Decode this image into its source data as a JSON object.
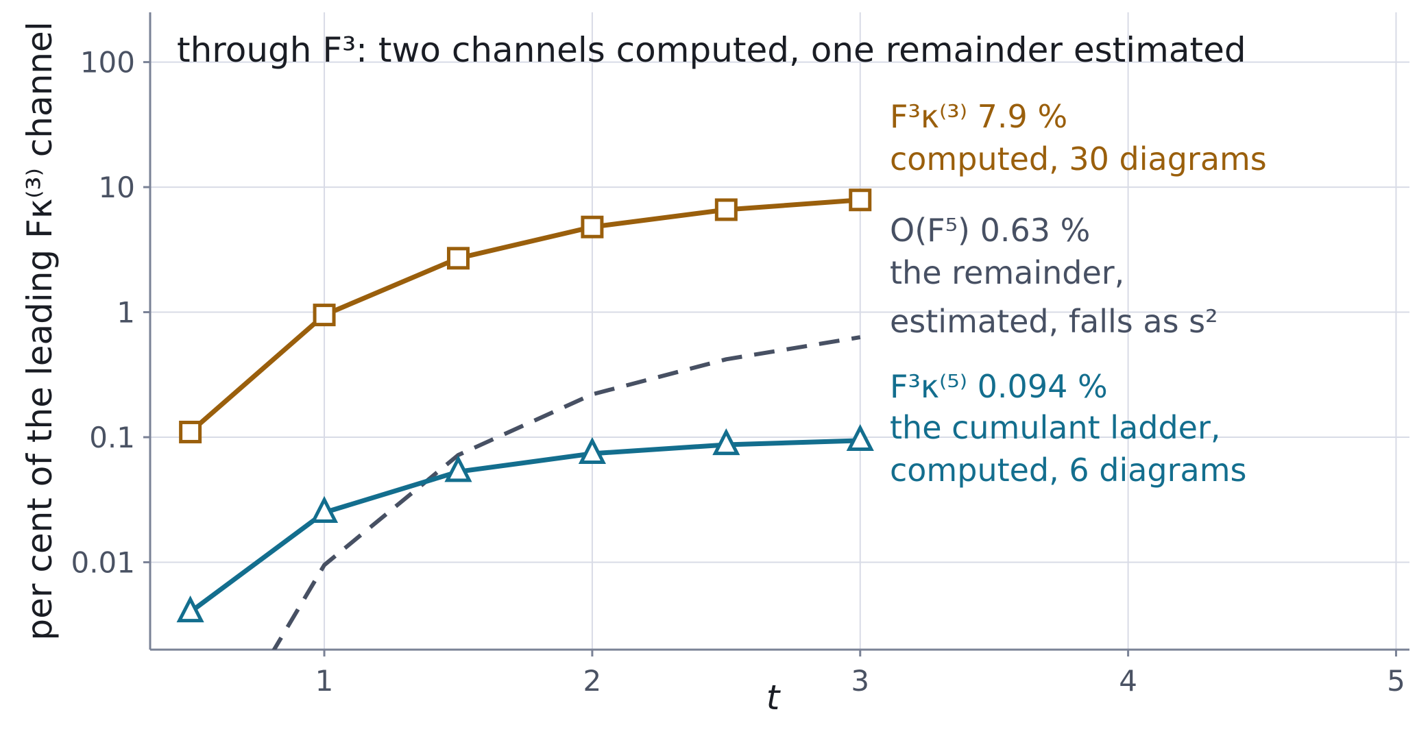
{
  "chart_data": {
    "type": "line",
    "title": "through F³: two channels computed, one remainder estimated",
    "xlabel": "t",
    "ylabel": "per cent of the leading Fκ⁽³⁾ channel",
    "ylog": true,
    "xlim": [
      0.35,
      5.05
    ],
    "ylim": [
      0.002,
      250
    ],
    "x_ticks": [
      "1",
      "2",
      "3",
      "4",
      "5"
    ],
    "y_ticks": [
      "0.01",
      "0.1",
      "1",
      "10",
      "100"
    ],
    "grid": true,
    "series": [
      {
        "label": "F³κ⁽³⁾",
        "value_label": "7.9 %",
        "note_lines": [
          "computed, 30 diagrams"
        ],
        "color": "#9a5f0c",
        "marker": "square",
        "dashed": false,
        "x": [
          0.5,
          1.0,
          1.5,
          2.0,
          2.5,
          3.0
        ],
        "y": [
          0.11,
          0.95,
          2.7,
          4.8,
          6.6,
          7.9
        ]
      },
      {
        "label": "O(F⁵)",
        "value_label": "0.63 %",
        "note_lines": [
          "the remainder,",
          "estimated, falls as s²"
        ],
        "color": "#475063",
        "marker": "none",
        "dashed": true,
        "x": [
          0.8,
          1.0,
          1.5,
          2.0,
          2.5,
          3.0
        ],
        "y": [
          0.0018,
          0.0095,
          0.072,
          0.22,
          0.42,
          0.63
        ]
      },
      {
        "label": "F³κ⁽⁵⁾",
        "value_label": "0.094 %",
        "note_lines": [
          "the cumulant ladder,",
          "computed, 6 diagrams"
        ],
        "color": "#136e8e",
        "marker": "triangle",
        "dashed": false,
        "x": [
          0.5,
          1.0,
          1.5,
          2.0,
          2.5,
          3.0
        ],
        "y": [
          0.004,
          0.025,
          0.053,
          0.074,
          0.087,
          0.094
        ]
      }
    ]
  }
}
